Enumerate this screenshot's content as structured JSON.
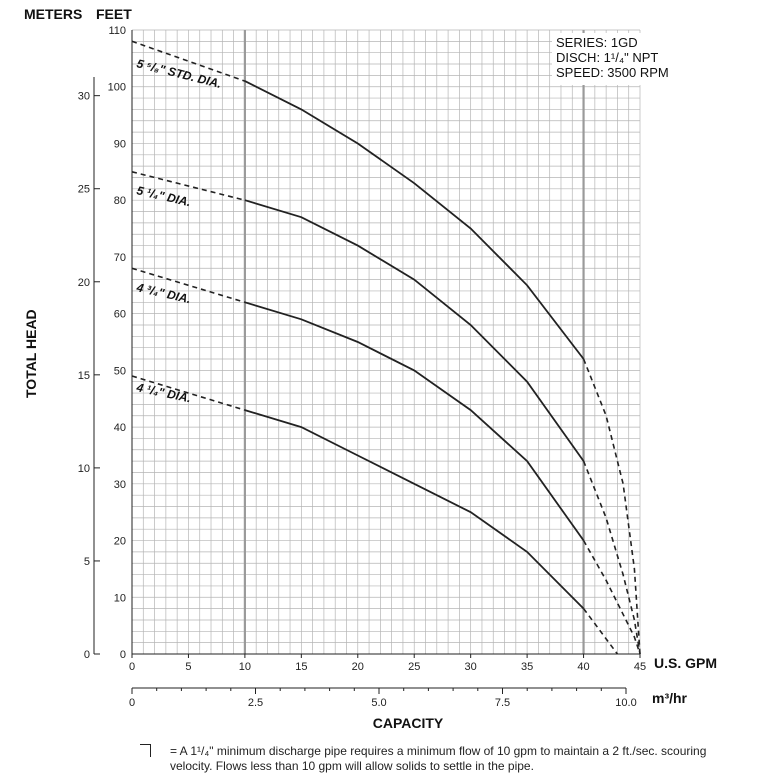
{
  "chart_data": {
    "type": "line",
    "header_left": "METERS",
    "header_right": "FEET",
    "ylabel": "TOTAL HEAD",
    "xlabel": "CAPACITY",
    "x_unit": "U.S. GPM",
    "x2_unit": "m³/hr",
    "xlim": [
      0,
      45
    ],
    "ylim": [
      0,
      110
    ],
    "xticks": [
      0,
      5,
      10,
      15,
      20,
      25,
      30,
      35,
      40,
      45
    ],
    "yticks": [
      0,
      10,
      20,
      30,
      40,
      50,
      60,
      70,
      80,
      90,
      100,
      110
    ],
    "y2ticks": [
      0,
      5,
      10,
      15,
      20,
      25,
      30
    ],
    "x2ticks": [
      "0",
      "2.5",
      "5.0",
      "7.5",
      "10.0"
    ],
    "x2tick_values": [
      0,
      2.5,
      5,
      7.5,
      10
    ],
    "info": [
      "SERIES: 1GD",
      "DISCH: 1¹/₄\" NPT",
      "SPEED: 3500 RPM"
    ],
    "series": [
      {
        "name": "5 ⁵/₈\" STD. DIA.",
        "solid": [
          [
            10,
            101
          ],
          [
            15,
            96
          ],
          [
            20,
            90
          ],
          [
            25,
            83
          ],
          [
            30,
            75
          ],
          [
            35,
            65
          ],
          [
            40,
            52
          ]
        ],
        "dashed_start": [
          [
            0,
            108
          ],
          [
            10,
            101
          ]
        ],
        "dashed_end": [
          [
            40,
            52
          ],
          [
            42,
            42
          ],
          [
            43.5,
            30
          ],
          [
            44.5,
            15
          ],
          [
            45,
            0
          ]
        ]
      },
      {
        "name": "5 ¹/₄\" DIA.",
        "solid": [
          [
            10,
            80
          ],
          [
            15,
            77
          ],
          [
            20,
            72
          ],
          [
            25,
            66
          ],
          [
            30,
            58
          ],
          [
            35,
            48
          ],
          [
            40,
            34
          ]
        ],
        "dashed_start": [
          [
            0,
            85
          ],
          [
            10,
            80
          ]
        ],
        "dashed_end": [
          [
            40,
            34
          ],
          [
            42,
            24
          ],
          [
            43.5,
            14
          ],
          [
            44.5,
            6
          ],
          [
            45,
            0
          ]
        ]
      },
      {
        "name": "4 ³/₄\" DIA.",
        "solid": [
          [
            10,
            62
          ],
          [
            15,
            59
          ],
          [
            20,
            55
          ],
          [
            25,
            50
          ],
          [
            30,
            43
          ],
          [
            35,
            34
          ],
          [
            40,
            20
          ]
        ],
        "dashed_start": [
          [
            0,
            68
          ],
          [
            10,
            62
          ]
        ],
        "dashed_end": [
          [
            40,
            20
          ],
          [
            42,
            13
          ],
          [
            43.5,
            7
          ],
          [
            44.5,
            3
          ],
          [
            45,
            0
          ]
        ]
      },
      {
        "name": "4 ¹/₄\" DIA.",
        "solid": [
          [
            10,
            43
          ],
          [
            15,
            40
          ],
          [
            20,
            35
          ],
          [
            25,
            30
          ],
          [
            30,
            25
          ],
          [
            35,
            18
          ],
          [
            40,
            8
          ]
        ],
        "dashed_start": [
          [
            0,
            49
          ],
          [
            10,
            43
          ]
        ],
        "dashed_end": [
          [
            40,
            8
          ],
          [
            41.5,
            4
          ],
          [
            43,
            0
          ]
        ]
      }
    ],
    "footnote": "= A 1¹/₄\" minimum discharge pipe requires a minimum flow of 10 gpm to maintain a 2 ft./sec. scouring velocity. Flows less than 10 gpm will allow solids to settle in the pipe."
  }
}
